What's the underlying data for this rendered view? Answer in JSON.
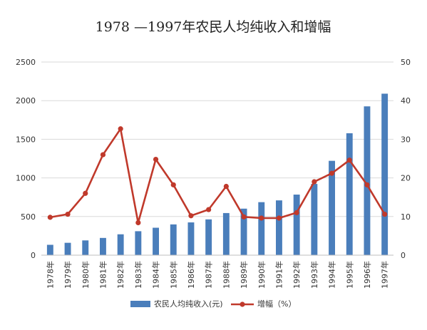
{
  "chart_data": {
    "type": "bar",
    "title": "1978 —1997年农民人均纯收入和增幅",
    "categories": [
      "1978年",
      "1979年",
      "1980年",
      "1981年",
      "1982年",
      "1983年",
      "1984年",
      "1985年",
      "1986年",
      "1987年",
      "1988年",
      "1989年",
      "1990年",
      "1991年",
      "1992年",
      "1993年",
      "1994年",
      "1995年",
      "1996年",
      "1997年"
    ],
    "series": [
      {
        "name": "农民人均纯收入(元)",
        "type": "bar",
        "axis": "left",
        "color": "#4a7ebb",
        "values": [
          134,
          160,
          191,
          223,
          270,
          310,
          355,
          398,
          424,
          463,
          545,
          602,
          686,
          709,
          784,
          922,
          1221,
          1578,
          1926,
          2090
        ]
      },
      {
        "name": "增幅（%）",
        "type": "line",
        "axis": "right",
        "color": "#c0392b",
        "values": [
          9.8,
          10.6,
          16.0,
          26.0,
          32.7,
          8.4,
          24.8,
          18.2,
          10.2,
          11.8,
          17.8,
          9.9,
          9.6,
          9.6,
          11.0,
          19.0,
          21.2,
          24.6,
          18.2,
          10.6
        ]
      }
    ],
    "y_left": {
      "ylim": [
        0,
        2500
      ],
      "ticks": [
        0,
        500,
        1000,
        1500,
        2000,
        2500
      ]
    },
    "y_right": {
      "ylim": [
        0,
        50
      ],
      "ticks": [
        0,
        10,
        20,
        30,
        40,
        50
      ]
    },
    "grid": true,
    "legend": "bottom"
  }
}
